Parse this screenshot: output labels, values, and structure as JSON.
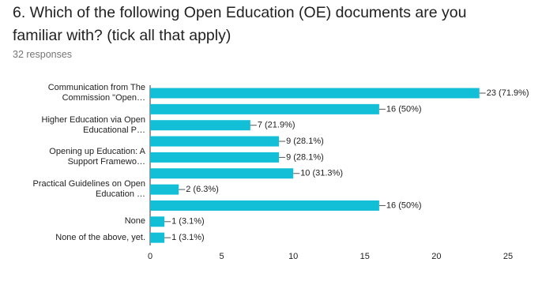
{
  "title": "6. Which of the following Open Education (OE) documents are you familiar with? (tick all that apply)",
  "subtitle": "32 responses",
  "chart_data": {
    "type": "hbar",
    "categories": [
      "Communication from The Commission \"Open…",
      null,
      "Higher Education via Open Educational P…",
      null,
      "Opening up Education: A Support Framewo…",
      null,
      "Practical Guidelines on Open Education …",
      null,
      "None",
      "None of the above, yet."
    ],
    "values": [
      23,
      16,
      7,
      9,
      9,
      10,
      2,
      16,
      1,
      1
    ],
    "value_labels": [
      "23 (71.9%)",
      "16 (50%)",
      "7 (21.9%)",
      "9 (28.1%)",
      "9 (28.1%)",
      "10 (31.3%)",
      "2 (6.3%)",
      "16 (50%)",
      "1 (3.1%)",
      "1 (3.1%)"
    ],
    "color": "#12bfd6",
    "xlim": [
      0,
      25
    ],
    "xticks": [
      0,
      5,
      10,
      15,
      20,
      25
    ],
    "grid": false
  }
}
